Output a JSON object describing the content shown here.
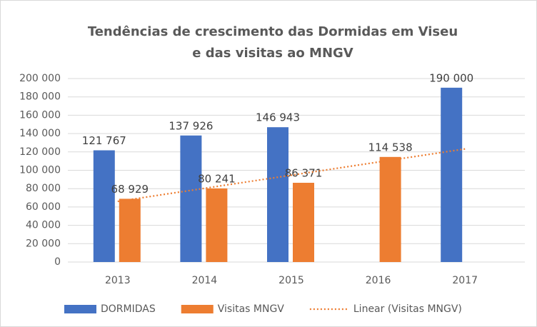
{
  "chart_data": {
    "type": "bar",
    "title": [
      "Tendências de crescimento das Dormidas em Viseu",
      "e das visitas ao MNGV"
    ],
    "categories": [
      "2013",
      "2014",
      "2015",
      "2016",
      "2017"
    ],
    "series": [
      {
        "name": "DORMIDAS",
        "color": "#4472c4",
        "values": [
          121767,
          137926,
          146943,
          null,
          190000
        ],
        "value_labels": [
          "121 767",
          "137 926",
          "146 943",
          null,
          "190 000"
        ]
      },
      {
        "name": "Visitas MNGV",
        "color": "#ed7d31",
        "values": [
          68929,
          80241,
          86371,
          114538,
          null
        ],
        "value_labels": [
          "68 929",
          "80 241",
          "86 371",
          "114 538",
          null
        ],
        "trendline": {
          "type": "linear",
          "name": "Linear (Visitas MNGV)"
        }
      }
    ],
    "ylim": [
      0,
      200000
    ],
    "yticks": [
      0,
      {
        "value": 20000,
        "label": "20 000"
      },
      {
        "value": 40000,
        "label": "40 000"
      },
      {
        "value": 60000,
        "label": "60 000"
      },
      {
        "value": 80000,
        "label": "80 000"
      },
      {
        "value": 100000,
        "label": "100 000"
      },
      {
        "value": 120000,
        "label": "120 000"
      },
      {
        "value": 140000,
        "label": "140 000"
      },
      {
        "value": 160000,
        "label": "160 000"
      },
      {
        "value": 180000,
        "label": "180 000"
      },
      {
        "value": 200000,
        "label": "200 000"
      }
    ],
    "grid": true,
    "legend": "bottom"
  }
}
